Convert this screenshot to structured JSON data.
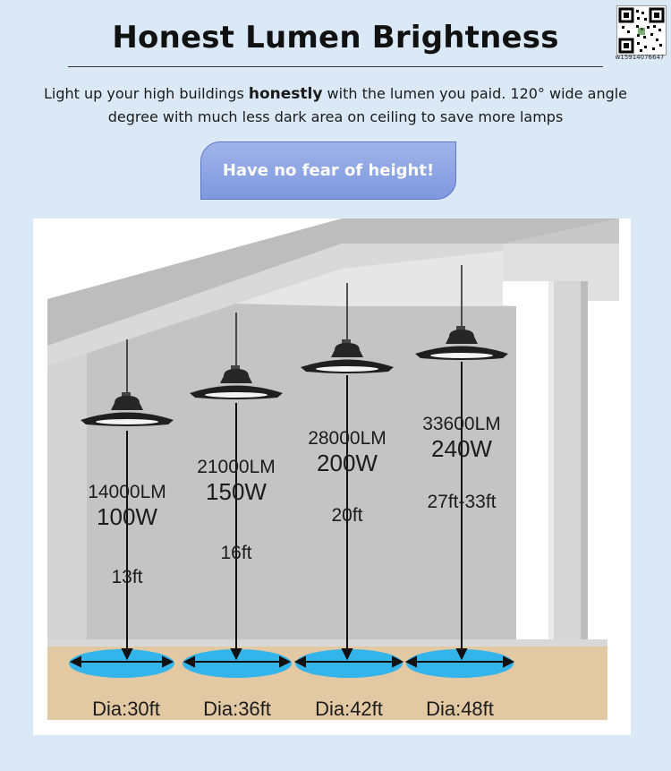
{
  "header": {
    "title": "Honest Lumen Brightness",
    "qr_id": "w15914076647"
  },
  "description": {
    "part1": "Light up your high buildings ",
    "bold": "honestly",
    "part2": " with the lumen you paid.  120°  wide angle  degree with much less dark area on ceiling to save more lamps"
  },
  "banner": {
    "text": "Have no fear of height!"
  },
  "lamps": [
    {
      "lumen": "14000LM",
      "watt": "100W",
      "height": "13ft",
      "diameter": "Dia:30ft"
    },
    {
      "lumen": "21000LM",
      "watt": "150W",
      "height": "16ft",
      "diameter": "Dia:36ft"
    },
    {
      "lumen": "28000LM",
      "watt": "200W",
      "height": "20ft",
      "diameter": "Dia:42ft"
    },
    {
      "lumen": "33600LM",
      "watt": "240W",
      "height": "27ft-33ft",
      "diameter": "Dia:48ft"
    }
  ],
  "colors": {
    "background": "#dbe9f7",
    "banner": "#8ea6e4",
    "wall": "#c9c9c9",
    "floor": "#e2c9a4",
    "light_pool": "#33b4ea"
  }
}
